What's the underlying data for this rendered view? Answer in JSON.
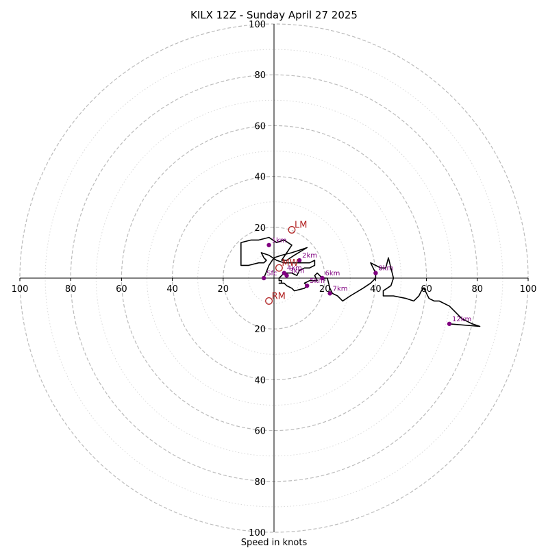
{
  "chart_data": {
    "type": "hodograph",
    "title": "KILX 12Z - Sunday April 27 2025",
    "xlabel": "Speed in knots",
    "xlim": [
      -100,
      100
    ],
    "ylim": [
      -100,
      100
    ],
    "ring_major": [
      20,
      40,
      60,
      80,
      100
    ],
    "ring_minor": [
      10,
      30,
      50,
      70,
      90
    ],
    "tick_labels": [
      "100",
      "80",
      "60",
      "40",
      "20",
      "20",
      "40",
      "60",
      "80",
      "100"
    ],
    "y_tick_labels_top": [
      "100",
      "80",
      "60",
      "40",
      "20"
    ],
    "y_tick_labels_bottom": [
      "20",
      "40",
      "60",
      "80",
      "100"
    ],
    "grid": true,
    "trace": [
      [
        -4,
        0
      ],
      [
        -2,
        5
      ],
      [
        0,
        8
      ],
      [
        3,
        9
      ],
      [
        7,
        10
      ],
      [
        10,
        11
      ],
      [
        13,
        12
      ],
      [
        8,
        9
      ],
      [
        5,
        7
      ],
      [
        3,
        7
      ],
      [
        5,
        10
      ],
      [
        7,
        13
      ],
      [
        4,
        15
      ],
      [
        1,
        14
      ],
      [
        -2,
        16
      ],
      [
        -6,
        15
      ],
      [
        -9,
        15
      ],
      [
        -13,
        14
      ],
      [
        -13,
        6
      ],
      [
        -13,
        5
      ],
      [
        -10,
        5
      ],
      [
        -6,
        6
      ],
      [
        -4,
        6
      ],
      [
        -3,
        7
      ],
      [
        -4,
        8
      ],
      [
        -5,
        10
      ],
      [
        -2,
        9
      ],
      [
        1,
        7
      ],
      [
        4,
        6
      ],
      [
        8,
        6
      ],
      [
        12,
        6
      ],
      [
        14,
        6
      ],
      [
        16,
        7
      ],
      [
        16,
        5
      ],
      [
        14,
        4
      ],
      [
        12,
        4
      ],
      [
        10,
        3
      ],
      [
        9,
        1
      ],
      [
        7,
        2
      ],
      [
        6,
        2
      ],
      [
        4,
        2
      ],
      [
        3,
        1
      ],
      [
        2,
        0
      ],
      [
        2,
        -1
      ],
      [
        3,
        -1
      ],
      [
        3,
        -2
      ],
      [
        2,
        -2
      ],
      [
        4,
        -2
      ],
      [
        5,
        -3
      ],
      [
        7,
        -4
      ],
      [
        8,
        -5
      ],
      [
        12,
        -4
      ],
      [
        13,
        -3
      ],
      [
        12,
        -2
      ],
      [
        14,
        -1
      ],
      [
        17,
        -1
      ],
      [
        16,
        1
      ],
      [
        17,
        2
      ],
      [
        19,
        0
      ],
      [
        21,
        0
      ],
      [
        22,
        -4
      ],
      [
        23,
        -6
      ],
      [
        25,
        -7
      ],
      [
        26,
        -8
      ],
      [
        27,
        -9
      ],
      [
        30,
        -7
      ],
      [
        35,
        -4
      ],
      [
        38,
        -2
      ],
      [
        40,
        0
      ],
      [
        40,
        2
      ],
      [
        38,
        6
      ],
      [
        40,
        5
      ],
      [
        42,
        4
      ],
      [
        44,
        4
      ],
      [
        45,
        8
      ],
      [
        46,
        4
      ],
      [
        47,
        0
      ],
      [
        46,
        -3
      ],
      [
        43,
        -5
      ],
      [
        43,
        -7
      ],
      [
        47,
        -7
      ],
      [
        52,
        -8
      ],
      [
        55,
        -9
      ],
      [
        57,
        -7
      ],
      [
        58,
        -5
      ],
      [
        59,
        -4
      ],
      [
        61,
        -8
      ],
      [
        63,
        -9
      ],
      [
        65,
        -9
      ],
      [
        69,
        -11
      ],
      [
        71,
        -13
      ],
      [
        74,
        -16
      ],
      [
        78,
        -18
      ],
      [
        81,
        -19
      ],
      [
        69,
        -18
      ]
    ],
    "height_markers": [
      {
        "label": "Sfc",
        "u": -4,
        "v": 0
      },
      {
        "label": "1km",
        "u": -2,
        "v": 13
      },
      {
        "label": "2km",
        "u": 10,
        "v": 7
      },
      {
        "label": "3km",
        "u": 5,
        "v": 1
      },
      {
        "label": "4km",
        "u": 4,
        "v": 2
      },
      {
        "label": "5km",
        "u": 13,
        "v": -3
      },
      {
        "label": "6km",
        "u": 19,
        "v": 0
      },
      {
        "label": "7km",
        "u": 22,
        "v": -6
      },
      {
        "label": "8km",
        "u": 40,
        "v": 2
      },
      {
        "label": "12km",
        "u": 69,
        "v": -18
      }
    ],
    "motion_markers": [
      {
        "label": "LM",
        "u": 7,
        "v": 19
      },
      {
        "label": "MW",
        "u": 2,
        "v": 4
      },
      {
        "label": "RM",
        "u": -2,
        "v": -9
      }
    ],
    "colors": {
      "trace": "#000000",
      "height_marker": "#800080",
      "motion_marker": "#b22222",
      "ring_major": "#bbbbbb",
      "ring_minor": "#d8d8d8"
    }
  }
}
